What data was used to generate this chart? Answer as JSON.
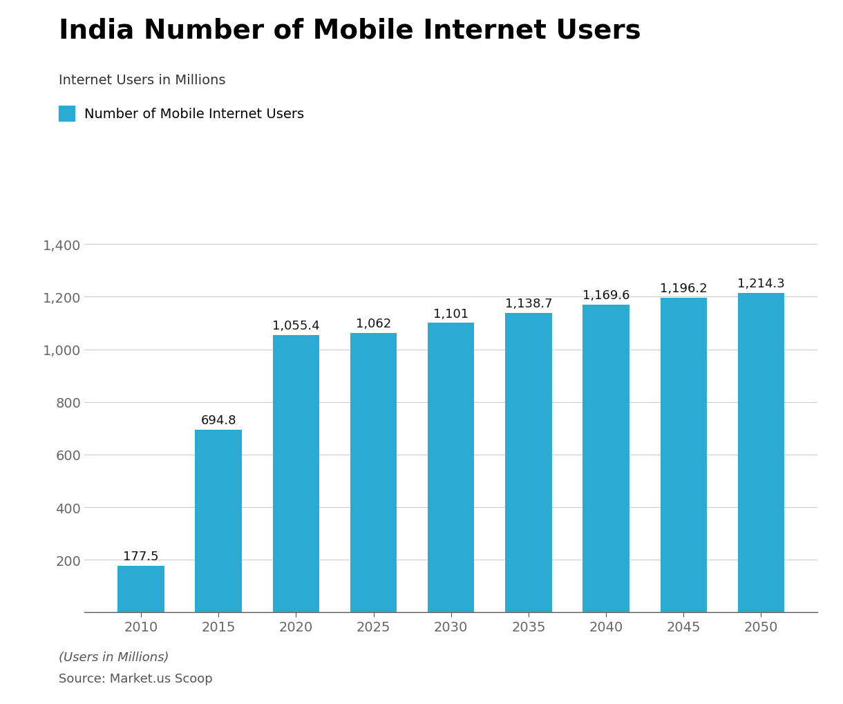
{
  "title": "India Number of Mobile Internet Users",
  "subtitle": "Internet Users in Millions",
  "legend_label": "Number of Mobile Internet Users",
  "footer_italic": "(Users in Millions)",
  "footer_source": "Source: Market.us Scoop",
  "categories": [
    2010,
    2015,
    2020,
    2025,
    2030,
    2035,
    2040,
    2045,
    2050
  ],
  "values": [
    177.5,
    694.8,
    1055.4,
    1062,
    1101,
    1138.7,
    1169.6,
    1196.2,
    1214.3
  ],
  "bar_color": "#29ABD4",
  "legend_color": "#29ABD4",
  "ylim": [
    0,
    1500
  ],
  "yticks": [
    0,
    200,
    400,
    600,
    800,
    1000,
    1200,
    1400
  ],
  "ytick_labels": [
    "",
    "200",
    "400",
    "600",
    "800",
    "1,000",
    "1,200",
    "1,400"
  ],
  "grid_color": "#cccccc",
  "background_color": "#ffffff",
  "title_fontsize": 28,
  "subtitle_fontsize": 14,
  "legend_fontsize": 14,
  "tick_fontsize": 14,
  "bar_label_fontsize": 13,
  "footer_fontsize": 13,
  "title_color": "#000000",
  "subtitle_color": "#333333",
  "tick_color": "#666666",
  "label_color": "#111111",
  "footer_italic_color": "#555555",
  "footer_source_color": "#555555"
}
